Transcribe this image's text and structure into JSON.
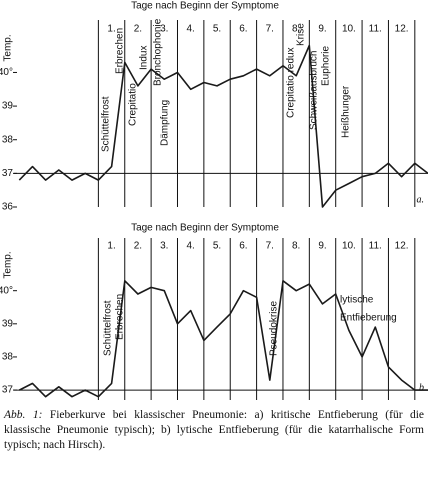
{
  "chart_data": [
    {
      "type": "line",
      "title": "Tage nach Beginn der Symptome",
      "ylabel": "Temp.",
      "panel_label": "a.",
      "x": [
        -3,
        -2.5,
        -2,
        -1.5,
        -1,
        -0.5,
        0,
        0.5,
        1,
        1.5,
        2,
        2.5,
        3,
        3.5,
        4,
        4.5,
        5,
        5.5,
        6,
        6.5,
        7,
        7.5,
        8,
        8.5,
        9,
        9.5,
        10,
        10.5,
        11,
        11.5,
        12,
        12.5
      ],
      "series": [
        {
          "color": "#1a1a1a",
          "values": [
            36.8,
            37.2,
            36.8,
            37.1,
            36.8,
            37.0,
            36.8,
            37.2,
            40.3,
            39.6,
            40.1,
            39.8,
            40.0,
            39.5,
            39.7,
            39.6,
            39.8,
            39.9,
            40.1,
            39.9,
            40.2,
            39.9,
            40.8,
            36.0,
            36.5,
            36.7,
            36.9,
            37.0,
            37.3,
            36.9,
            37.3,
            37.0
          ]
        }
      ],
      "xlim": [
        -3.2,
        12.5
      ],
      "xticks": [
        {
          "value": 0.5,
          "label": "1."
        },
        {
          "value": 1.5,
          "label": "2."
        },
        {
          "value": 2.5,
          "label": "3."
        },
        {
          "value": 3.5,
          "label": "4."
        },
        {
          "value": 4.5,
          "label": "5."
        },
        {
          "value": 5.5,
          "label": "6."
        },
        {
          "value": 6.5,
          "label": "7."
        },
        {
          "value": 7.5,
          "label": "8."
        },
        {
          "value": 8.5,
          "label": "9."
        },
        {
          "value": 9.5,
          "label": "10."
        },
        {
          "value": 10.5,
          "label": "11."
        },
        {
          "value": 11.5,
          "label": "12."
        }
      ],
      "ylim": [
        36,
        41.5
      ],
      "yticks": [
        36,
        37,
        38,
        39,
        {
          "value": 40,
          "label": "40°"
        }
      ],
      "reference_line": 37,
      "annotations": [
        "Schüttelfrost",
        "Erbrechen",
        "Crepitatio",
        "Indux",
        "Bronchophonie",
        "Dämpfung",
        "Crepitatio redux",
        "Krise",
        "Schweißausbruch",
        "Euphorie",
        "Heißhunger"
      ]
    },
    {
      "type": "line",
      "title": "Tage nach Beginn der Symptome",
      "ylabel": "Temp.",
      "panel_label": "b",
      "x": [
        -3,
        -2.5,
        -2,
        -1.5,
        -1,
        -0.5,
        0,
        0.5,
        1,
        1.5,
        2,
        2.5,
        3,
        3.5,
        4,
        4.5,
        5,
        5.5,
        6,
        6.5,
        7,
        7.5,
        8,
        8.5,
        9,
        9.5,
        10,
        10.5,
        11,
        11.5,
        12,
        12.5
      ],
      "series": [
        {
          "color": "#1a1a1a",
          "values": [
            37.0,
            37.2,
            36.8,
            37.1,
            36.8,
            37.0,
            36.8,
            37.2,
            40.3,
            39.9,
            40.1,
            40.0,
            39.0,
            39.4,
            38.5,
            38.9,
            39.3,
            40.0,
            39.8,
            37.3,
            40.3,
            40.0,
            40.2,
            39.6,
            39.9,
            38.8,
            38.0,
            38.9,
            37.7,
            37.3,
            37.0,
            37.0
          ]
        }
      ],
      "xlim": [
        -3.2,
        12.5
      ],
      "xticks": [
        {
          "value": 0.5,
          "label": "1."
        },
        {
          "value": 1.5,
          "label": "2."
        },
        {
          "value": 2.5,
          "label": "3."
        },
        {
          "value": 3.5,
          "label": "4."
        },
        {
          "value": 4.5,
          "label": "5."
        },
        {
          "value": 5.5,
          "label": "6."
        },
        {
          "value": 6.5,
          "label": "7."
        },
        {
          "value": 7.5,
          "label": "8."
        },
        {
          "value": 8.5,
          "label": "9."
        },
        {
          "value": 9.5,
          "label": "10."
        },
        {
          "value": 10.5,
          "label": "11."
        },
        {
          "value": 11.5,
          "label": "12."
        }
      ],
      "ylim": [
        36.7,
        41.5
      ],
      "yticks": [
        37,
        38,
        39,
        {
          "value": 40,
          "label": "40°"
        }
      ],
      "reference_line": 37,
      "annotations": [
        "Schüttelfrost",
        "Erbrechen",
        "Pseudokrise",
        "lytische",
        "Entfieberung"
      ]
    }
  ],
  "caption": {
    "label": "Abb. 1:",
    "text": "Fieberkurve bei klassischer Pneumonie: a) kritische Entfieberung (für die klassische Pneumonie typisch); b) lytische Entfieberung (für die katarrhalische Form typisch; nach Hirsch)."
  }
}
